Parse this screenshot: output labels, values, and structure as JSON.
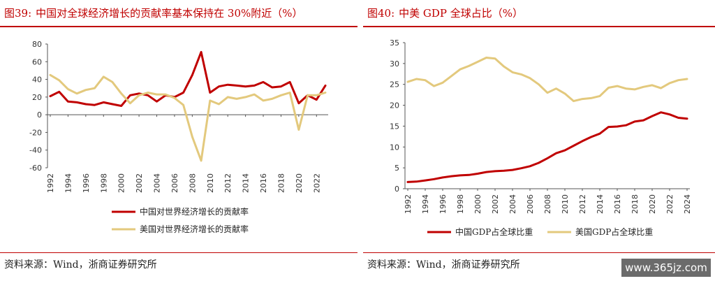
{
  "left": {
    "title_num": "图39:",
    "title": "中国对全球经济增长的贡献率基本保持在 30%附近（%）",
    "source": "资料来源：Wind，浙商证券研究所"
  },
  "right": {
    "title_num": "图40:",
    "title": "中美 GDP 全球占比（%）",
    "source": "资料来源：Wind，浙商证券研究所"
  },
  "watermark": "www.365jz.com",
  "chart_data": [
    {
      "type": "line",
      "title": "中国对全球经济增长的贡献率基本保持在 30%附近（%）",
      "x": [
        1992,
        1993,
        1994,
        1995,
        1996,
        1997,
        1998,
        1999,
        2000,
        2001,
        2002,
        2003,
        2004,
        2005,
        2006,
        2007,
        2008,
        2009,
        2010,
        2011,
        2012,
        2013,
        2014,
        2015,
        2016,
        2017,
        2018,
        2019,
        2020,
        2021,
        2022,
        2023
      ],
      "x_ticks": [
        "1992",
        "1994",
        "1996",
        "1998",
        "2000",
        "2002",
        "2004",
        "2006",
        "2008",
        "2010",
        "2012",
        "2014",
        "2016",
        "2018",
        "2020",
        "2022"
      ],
      "ylim": [
        -60,
        80
      ],
      "y_ticks": [
        "80",
        "60",
        "40",
        "20",
        "0",
        "-20",
        "-40",
        "-60"
      ],
      "grid": false,
      "legend_position": "bottom",
      "series": [
        {
          "name": "中国对世界经济增长的贡献率",
          "color": "#c00000",
          "values": [
            21,
            26,
            15,
            14,
            12,
            11,
            14,
            12,
            10,
            22,
            24,
            22,
            15,
            22,
            20,
            25,
            45,
            71,
            25,
            32,
            34,
            33,
            32,
            33,
            37,
            31,
            32,
            37,
            13,
            22,
            17,
            33
          ]
        },
        {
          "name": "美国对世界经济增长的贡献率",
          "color": "#e3c97d",
          "values": [
            45,
            39,
            29,
            24,
            28,
            30,
            43,
            37,
            24,
            13,
            22,
            25,
            23,
            23,
            19,
            11,
            -25,
            -52,
            16,
            12,
            20,
            18,
            20,
            23,
            16,
            18,
            22,
            25,
            -17,
            22,
            22,
            25
          ]
        }
      ]
    },
    {
      "type": "line",
      "title": "中美 GDP 全球占比（%）",
      "x": [
        1992,
        1993,
        1994,
        1995,
        1996,
        1997,
        1998,
        1999,
        2000,
        2001,
        2002,
        2003,
        2004,
        2005,
        2006,
        2007,
        2008,
        2009,
        2010,
        2011,
        2012,
        2013,
        2014,
        2015,
        2016,
        2017,
        2018,
        2019,
        2020,
        2021,
        2022,
        2023,
        2024
      ],
      "x_ticks": [
        "1992",
        "1994",
        "1996",
        "1998",
        "2000",
        "2002",
        "2004",
        "2006",
        "2008",
        "2010",
        "2012",
        "2014",
        "2016",
        "2018",
        "2020",
        "2022",
        "2024"
      ],
      "ylim": [
        0,
        35
      ],
      "y_ticks": [
        "35",
        "30",
        "25",
        "20",
        "15",
        "10",
        "5",
        "0"
      ],
      "grid": false,
      "legend_position": "bottom",
      "series": [
        {
          "name": "中国GDP占全球比重",
          "color": "#c00000",
          "values": [
            1.6,
            1.7,
            2.0,
            2.3,
            2.7,
            3.0,
            3.2,
            3.3,
            3.6,
            4.0,
            4.2,
            4.3,
            4.5,
            4.9,
            5.4,
            6.2,
            7.3,
            8.5,
            9.2,
            10.3,
            11.4,
            12.4,
            13.2,
            14.8,
            14.9,
            15.2,
            16.1,
            16.4,
            17.4,
            18.3,
            17.8,
            17.0,
            16.8
          ]
        },
        {
          "name": "美国GDP占全球比重",
          "color": "#e3c97d",
          "values": [
            25.6,
            26.3,
            26.0,
            24.6,
            25.4,
            27.0,
            28.6,
            29.4,
            30.4,
            31.4,
            31.2,
            29.3,
            27.9,
            27.4,
            26.5,
            25.0,
            23.0,
            24.0,
            22.8,
            21.0,
            21.5,
            21.7,
            22.2,
            24.2,
            24.6,
            24.0,
            23.8,
            24.4,
            24.8,
            24.1,
            25.3,
            26.0,
            26.3
          ]
        }
      ]
    }
  ]
}
